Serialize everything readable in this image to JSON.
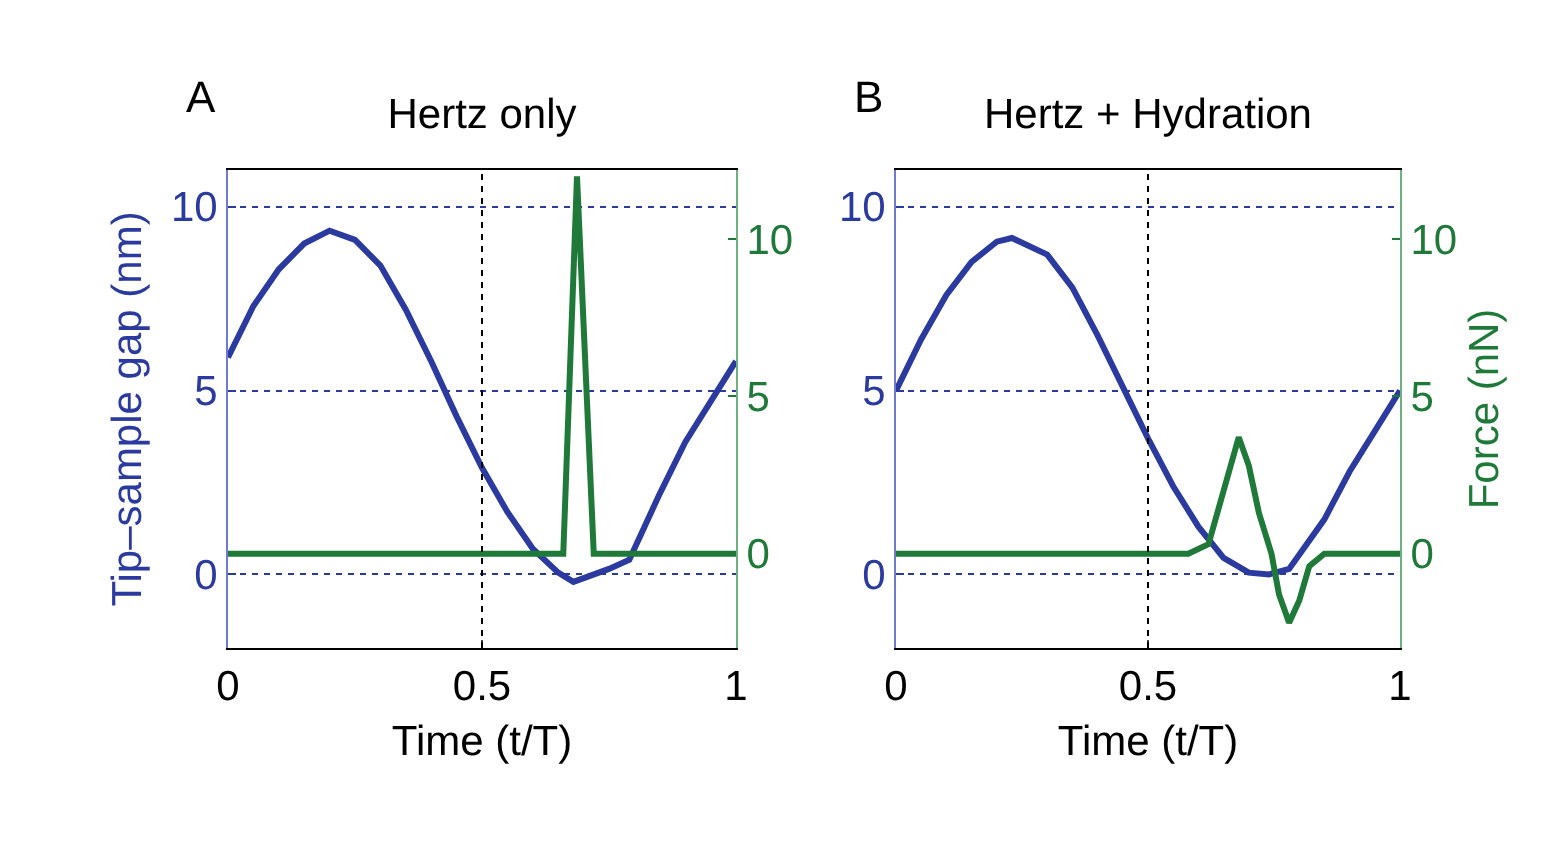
{
  "chart_data": [
    {
      "type": "line",
      "title": "Hertz only",
      "annotations": [
        "A"
      ],
      "xlabel": "Time (t/T)",
      "ylabel": "Tip–sample gap (nm)",
      "xlim": [
        0,
        1
      ],
      "xticks": [
        0,
        0.5,
        1
      ],
      "ylim": [
        -2,
        11
      ],
      "yticks": [
        0,
        5,
        10
      ],
      "y2lim": [
        -3,
        12.2
      ],
      "y2ticks": [
        0,
        5,
        10
      ],
      "grid": "y",
      "ref_lines": [
        {
          "axis": "x",
          "value": 0.5,
          "color": "#000000",
          "line_style": "dotted"
        }
      ],
      "line_style": "solid",
      "marker": "none",
      "series": [
        {
          "color": "#2b3a9e",
          "x": [
            0,
            0.05,
            0.1,
            0.15,
            0.2,
            0.25,
            0.3,
            0.35,
            0.4,
            0.45,
            0.5,
            0.55,
            0.6,
            0.65,
            0.68,
            0.75,
            0.79,
            0.85,
            0.9,
            0.95,
            1
          ],
          "values": [
            5.9,
            7.3,
            8.3,
            9.0,
            9.35,
            9.1,
            8.4,
            7.2,
            5.8,
            4.3,
            2.9,
            1.7,
            0.7,
            0.05,
            -0.2,
            0.15,
            0.4,
            2.2,
            3.6,
            4.7,
            5.8
          ]
        },
        {
          "color": "#1f7a3a",
          "axis": "y2",
          "x": [
            0,
            0.66,
            0.687,
            0.72,
            1
          ],
          "values": [
            0,
            0,
            12,
            0,
            0
          ]
        }
      ]
    },
    {
      "type": "line",
      "title": "Hertz + Hydration",
      "annotations": [
        "B"
      ],
      "xlabel": "Time (t/T)",
      "y2label": "Force (nN)",
      "xlim": [
        0,
        1
      ],
      "xticks": [
        0,
        0.5,
        1
      ],
      "ylim": [
        -2,
        11
      ],
      "yticks": [
        0,
        5,
        10
      ],
      "y2lim": [
        -3,
        12.2
      ],
      "y2ticks": [
        0,
        5,
        10
      ],
      "grid": "y",
      "ref_lines": [
        {
          "axis": "x",
          "value": 0.5,
          "color": "#000000",
          "line_style": "dotted"
        }
      ],
      "line_style": "solid",
      "marker": "none",
      "series": [
        {
          "color": "#2b3a9e",
          "x": [
            0,
            0.05,
            0.1,
            0.15,
            0.2,
            0.23,
            0.3,
            0.35,
            0.4,
            0.45,
            0.5,
            0.55,
            0.6,
            0.65,
            0.7,
            0.74,
            0.78,
            0.85,
            0.9,
            0.95,
            1
          ],
          "values": [
            5.0,
            6.4,
            7.6,
            8.5,
            9.05,
            9.15,
            8.7,
            7.8,
            6.5,
            5.1,
            3.7,
            2.4,
            1.3,
            0.45,
            0.05,
            0,
            0.15,
            1.5,
            2.8,
            3.9,
            5.0
          ]
        },
        {
          "color": "#1f7a3a",
          "axis": "y2",
          "x": [
            0,
            0.58,
            0.62,
            0.65,
            0.68,
            0.7,
            0.72,
            0.745,
            0.76,
            0.78,
            0.8,
            0.82,
            0.85,
            1
          ],
          "values": [
            0,
            0,
            0.3,
            2.0,
            3.7,
            2.8,
            1.3,
            0,
            -1.3,
            -2.2,
            -1.5,
            -0.4,
            0,
            0
          ]
        }
      ]
    }
  ]
}
